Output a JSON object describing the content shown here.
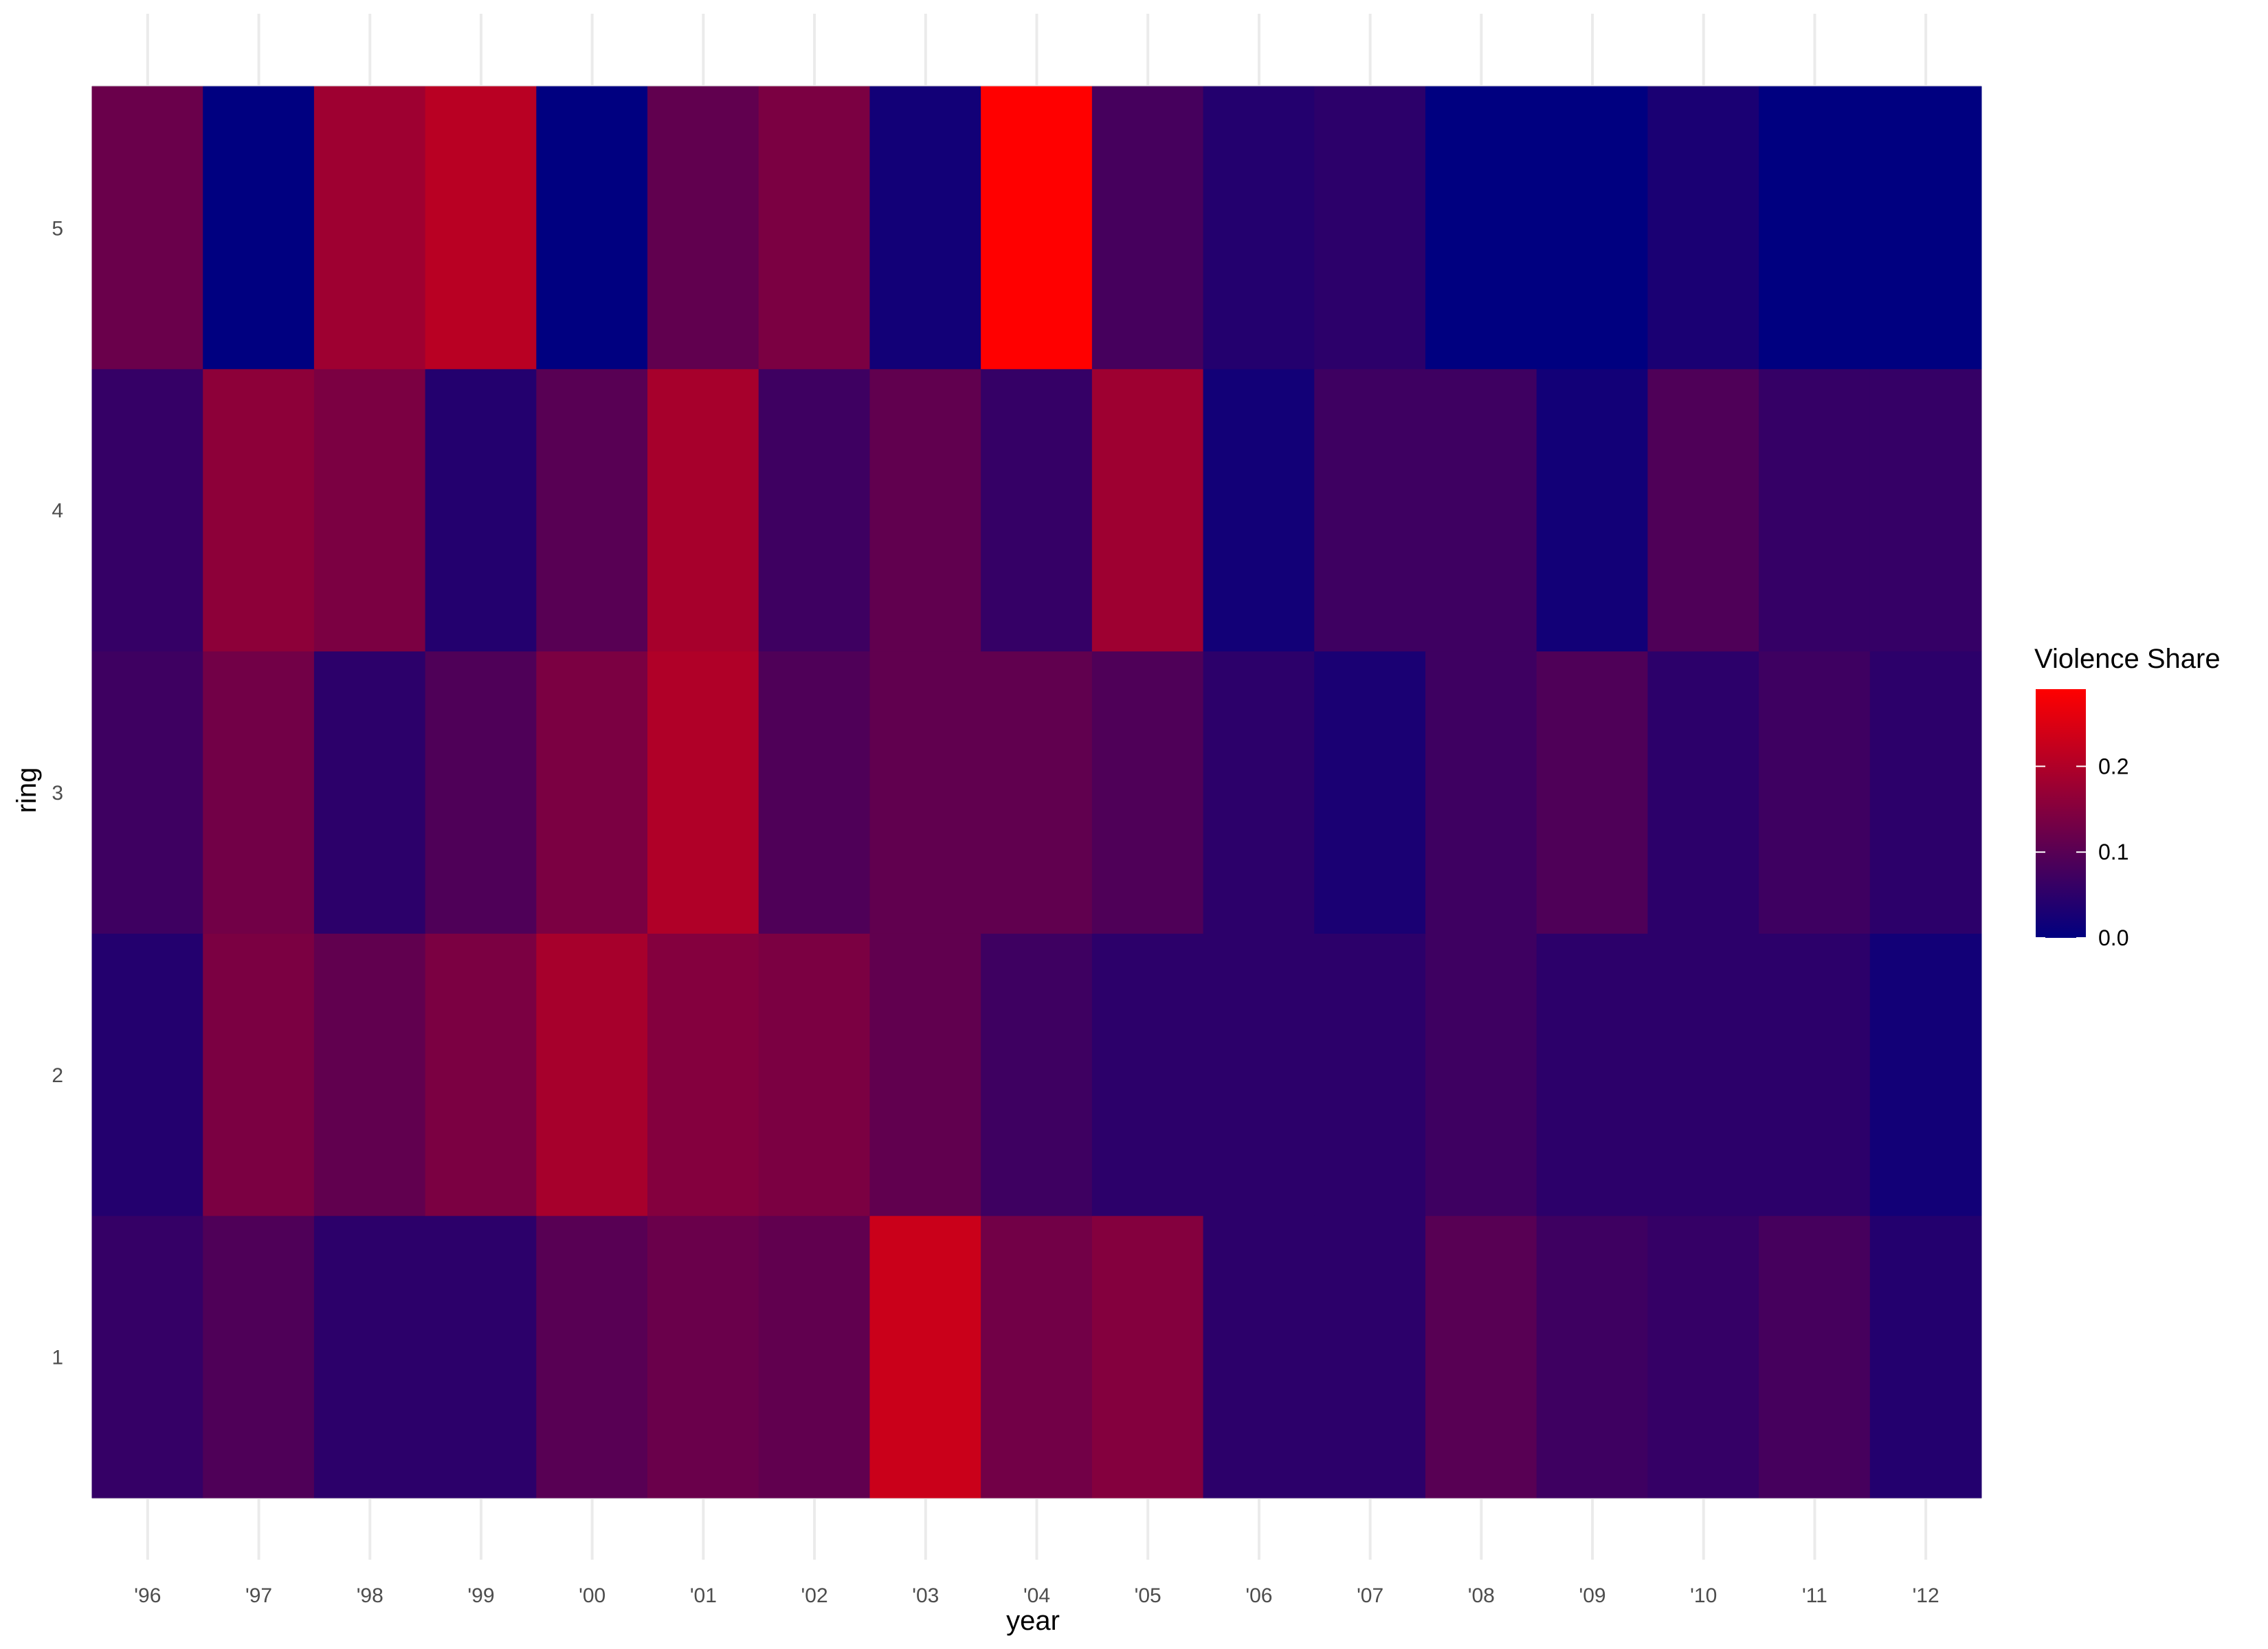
{
  "chart_data": {
    "type": "heatmap",
    "title": "",
    "xlabel": "year",
    "ylabel": "ring",
    "x_categories": [
      "'96",
      "'97",
      "'98",
      "'99",
      "'00",
      "'01",
      "'02",
      "'03",
      "'04",
      "'05",
      "'06",
      "'07",
      "'08",
      "'09",
      "'10",
      "'11",
      "'12"
    ],
    "y_categories": [
      "1",
      "2",
      "3",
      "4",
      "5"
    ],
    "values": [
      [
        0.06,
        0.09,
        0.05,
        0.05,
        0.1,
        0.12,
        0.11,
        0.23,
        0.13,
        0.15,
        0.05,
        0.05,
        0.1,
        0.07,
        0.06,
        0.08,
        0.04
      ],
      [
        0.04,
        0.14,
        0.11,
        0.14,
        0.19,
        0.15,
        0.14,
        0.11,
        0.07,
        0.05,
        0.05,
        0.05,
        0.07,
        0.05,
        0.05,
        0.05,
        0.02
      ],
      [
        0.07,
        0.13,
        0.05,
        0.09,
        0.14,
        0.2,
        0.09,
        0.11,
        0.11,
        0.09,
        0.05,
        0.03,
        0.07,
        0.09,
        0.05,
        0.07,
        0.05
      ],
      [
        0.06,
        0.16,
        0.14,
        0.04,
        0.1,
        0.19,
        0.07,
        0.11,
        0.06,
        0.18,
        0.02,
        0.07,
        0.07,
        0.02,
        0.09,
        0.06,
        0.06
      ],
      [
        0.12,
        0.0,
        0.18,
        0.21,
        0.0,
        0.11,
        0.14,
        0.02,
        0.29,
        0.08,
        0.04,
        0.05,
        0.0,
        0.0,
        0.03,
        0.0,
        0.0
      ]
    ],
    "color_scale": {
      "low": "#000080",
      "high": "#ff0000",
      "min": 0.0,
      "max": 0.29
    },
    "legend": {
      "title": "Violence Share",
      "ticks": [
        0.0,
        0.1,
        0.2
      ],
      "tick_labels": [
        "0.0",
        "0.1",
        "0.2"
      ],
      "position": "right"
    },
    "grid": true
  }
}
